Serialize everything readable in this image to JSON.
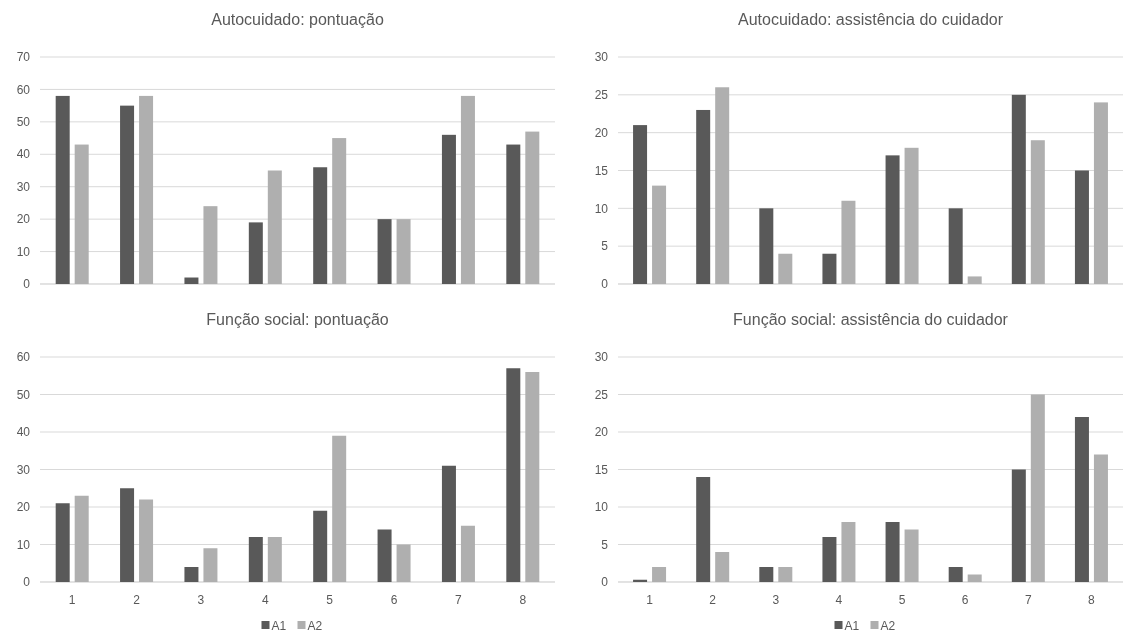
{
  "chart_data": [
    {
      "type": "bar",
      "title": "Autocuidado: pontuação",
      "categories": [
        null,
        null,
        null,
        null,
        null,
        null,
        null,
        null
      ],
      "tick_labels": "y",
      "ylim": [
        0,
        70
      ],
      "yticks": [
        0,
        10,
        20,
        30,
        40,
        50,
        60,
        70
      ],
      "grid": "y",
      "legend": false,
      "series": [
        {
          "color": "#595959",
          "values": [
            58,
            55,
            2,
            19,
            36,
            20,
            46,
            43
          ]
        },
        {
          "color": "#afafaf",
          "values": [
            43,
            58,
            24,
            35,
            45,
            20,
            58,
            47
          ]
        }
      ]
    },
    {
      "type": "bar",
      "title": "Autocuidado: assistência do cuidador",
      "categories": [
        null,
        null,
        null,
        null,
        null,
        null,
        null,
        null
      ],
      "tick_labels": "y",
      "ylim": [
        0,
        30
      ],
      "yticks": [
        0,
        5,
        10,
        15,
        20,
        25,
        30
      ],
      "grid": "y",
      "legend": false,
      "series": [
        {
          "color": "#595959",
          "values": [
            21,
            23,
            10,
            4,
            17,
            10,
            25,
            15
          ]
        },
        {
          "color": "#afafaf",
          "values": [
            13,
            26,
            4,
            11,
            18,
            1,
            19,
            24
          ]
        }
      ]
    },
    {
      "type": "bar",
      "title": "Função social: pontuação",
      "categories": [
        "1",
        "2",
        "3",
        "4",
        "5",
        "6",
        "7",
        "8"
      ],
      "ylim": [
        0,
        60
      ],
      "yticks": [
        0,
        10,
        20,
        30,
        40,
        50,
        60
      ],
      "grid": "y",
      "legend": "bottom",
      "series": [
        {
          "name": "A1",
          "color": "#595959",
          "values": [
            21,
            25,
            4,
            12,
            19,
            14,
            31,
            57
          ]
        },
        {
          "name": "A2",
          "color": "#afafaf",
          "values": [
            23,
            22,
            9,
            12,
            39,
            10,
            15,
            56
          ]
        }
      ]
    },
    {
      "type": "bar",
      "title": "Função social: assistência do cuidador",
      "categories": [
        "1",
        "2",
        "3",
        "4",
        "5",
        "6",
        "7",
        "8"
      ],
      "ylim": [
        0,
        30
      ],
      "yticks": [
        0,
        5,
        10,
        15,
        20,
        25,
        30
      ],
      "grid": "y",
      "legend": "bottom",
      "series": [
        {
          "name": "A1",
          "color": "#595959",
          "values": [
            0.3,
            14,
            2,
            6,
            8,
            2,
            15,
            22
          ]
        },
        {
          "name": "A2",
          "color": "#afafaf",
          "values": [
            2,
            4,
            2,
            8,
            7,
            1,
            25,
            17
          ]
        }
      ]
    }
  ]
}
